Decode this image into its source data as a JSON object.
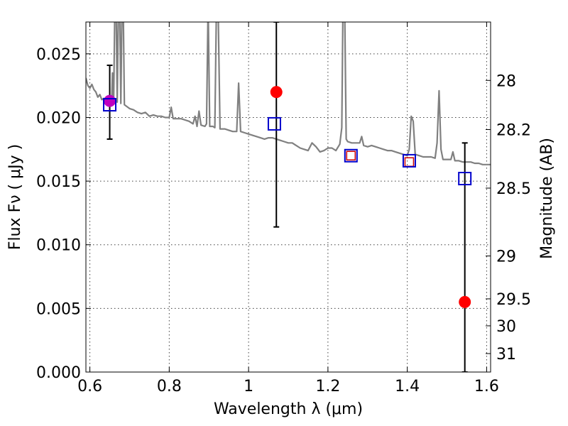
{
  "chart_data": {
    "type": "scatter",
    "title": "",
    "xlabel": "Wavelength  λ (μm)",
    "ylabel": "Flux  Fν  ( μJy )",
    "ylabel_right": "Magnitude (AB)",
    "xlim": [
      0.59,
      1.61
    ],
    "ylim": [
      0.0,
      0.0275
    ],
    "grid": true,
    "x_ticks": [
      {
        "value": 0.6,
        "label": "0.6"
      },
      {
        "value": 0.8,
        "label": "0.8"
      },
      {
        "value": 1.0,
        "label": "1"
      },
      {
        "value": 1.2,
        "label": "1.2"
      },
      {
        "value": 1.4,
        "label": "1.4"
      },
      {
        "value": 1.6,
        "label": "1.6"
      }
    ],
    "y_ticks": [
      {
        "value": 0.0,
        "label": "0.000"
      },
      {
        "value": 0.005,
        "label": "0.005"
      },
      {
        "value": 0.01,
        "label": "0.010"
      },
      {
        "value": 0.015,
        "label": "0.015"
      },
      {
        "value": 0.02,
        "label": "0.020"
      },
      {
        "value": 0.025,
        "label": "0.025"
      }
    ],
    "magnitude_ticks": [
      {
        "flux": 0.02291,
        "label": "28"
      },
      {
        "flux": 0.01905,
        "label": "28.2"
      },
      {
        "flux": 0.01445,
        "label": "28.5"
      },
      {
        "flux": 0.00912,
        "label": "29"
      },
      {
        "flux": 0.00575,
        "label": "29.5"
      },
      {
        "flux": 0.00363,
        "label": "30"
      },
      {
        "flux": 0.00145,
        "label": "31"
      }
    ],
    "series": [
      {
        "type": "line",
        "color": "#808080",
        "points": [
          [
            0.59,
            0.0231
          ],
          [
            0.595,
            0.0225
          ],
          [
            0.6,
            0.0223
          ],
          [
            0.605,
            0.0226
          ],
          [
            0.61,
            0.0222
          ],
          [
            0.615,
            0.022
          ],
          [
            0.62,
            0.0216
          ],
          [
            0.625,
            0.0218
          ],
          [
            0.63,
            0.0214
          ],
          [
            0.635,
            0.0215
          ],
          [
            0.64,
            0.0212
          ],
          [
            0.645,
            0.0213
          ],
          [
            0.65,
            0.0211
          ],
          [
            0.655,
            0.0213
          ],
          [
            0.657,
            0.0235
          ],
          [
            0.66,
            0.0213
          ],
          [
            0.663,
            0.029
          ],
          [
            0.666,
            0.029
          ],
          [
            0.669,
            0.0212
          ],
          [
            0.672,
            0.029
          ],
          [
            0.675,
            0.029
          ],
          [
            0.678,
            0.0211
          ],
          [
            0.681,
            0.029
          ],
          [
            0.684,
            0.029
          ],
          [
            0.687,
            0.021
          ],
          [
            0.7,
            0.0207
          ],
          [
            0.71,
            0.0206
          ],
          [
            0.72,
            0.0204
          ],
          [
            0.73,
            0.0203
          ],
          [
            0.74,
            0.0204
          ],
          [
            0.75,
            0.0201
          ],
          [
            0.76,
            0.0202
          ],
          [
            0.77,
            0.0201
          ],
          [
            0.78,
            0.0201
          ],
          [
            0.79,
            0.02
          ],
          [
            0.8,
            0.02
          ],
          [
            0.805,
            0.0208
          ],
          [
            0.81,
            0.0199
          ],
          [
            0.82,
            0.0199
          ],
          [
            0.83,
            0.0199
          ],
          [
            0.84,
            0.0198
          ],
          [
            0.85,
            0.0197
          ],
          [
            0.86,
            0.0195
          ],
          [
            0.865,
            0.0201
          ],
          [
            0.87,
            0.0193
          ],
          [
            0.875,
            0.0205
          ],
          [
            0.88,
            0.0194
          ],
          [
            0.89,
            0.0193
          ],
          [
            0.894,
            0.0195
          ],
          [
            0.898,
            0.029
          ],
          [
            0.902,
            0.0193
          ],
          [
            0.91,
            0.0193
          ],
          [
            0.915,
            0.0192
          ],
          [
            0.919,
            0.029
          ],
          [
            0.923,
            0.029
          ],
          [
            0.928,
            0.0191
          ],
          [
            0.94,
            0.0191
          ],
          [
            0.95,
            0.019
          ],
          [
            0.96,
            0.0189
          ],
          [
            0.97,
            0.0189
          ],
          [
            0.975,
            0.0227
          ],
          [
            0.98,
            0.0189
          ],
          [
            0.99,
            0.0188
          ],
          [
            1.0,
            0.0187
          ],
          [
            1.01,
            0.0186
          ],
          [
            1.02,
            0.0185
          ],
          [
            1.03,
            0.0184
          ],
          [
            1.04,
            0.0183
          ],
          [
            1.05,
            0.0184
          ],
          [
            1.06,
            0.0184
          ],
          [
            1.07,
            0.0183
          ],
          [
            1.08,
            0.0182
          ],
          [
            1.09,
            0.0181
          ],
          [
            1.1,
            0.018
          ],
          [
            1.11,
            0.018
          ],
          [
            1.12,
            0.0178
          ],
          [
            1.13,
            0.0176
          ],
          [
            1.14,
            0.0175
          ],
          [
            1.15,
            0.0174
          ],
          [
            1.16,
            0.018
          ],
          [
            1.17,
            0.0177
          ],
          [
            1.18,
            0.0173
          ],
          [
            1.19,
            0.0174
          ],
          [
            1.2,
            0.0176
          ],
          [
            1.21,
            0.0176
          ],
          [
            1.22,
            0.0174
          ],
          [
            1.23,
            0.0179
          ],
          [
            1.235,
            0.0192
          ],
          [
            1.238,
            0.029
          ],
          [
            1.242,
            0.029
          ],
          [
            1.246,
            0.0183
          ],
          [
            1.25,
            0.0181
          ],
          [
            1.26,
            0.018
          ],
          [
            1.27,
            0.018
          ],
          [
            1.28,
            0.018
          ],
          [
            1.285,
            0.0185
          ],
          [
            1.29,
            0.0178
          ],
          [
            1.3,
            0.0177
          ],
          [
            1.31,
            0.0178
          ],
          [
            1.32,
            0.0177
          ],
          [
            1.33,
            0.0176
          ],
          [
            1.34,
            0.0175
          ],
          [
            1.35,
            0.0174
          ],
          [
            1.36,
            0.0174
          ],
          [
            1.37,
            0.0173
          ],
          [
            1.38,
            0.0172
          ],
          [
            1.39,
            0.0171
          ],
          [
            1.4,
            0.017
          ],
          [
            1.405,
            0.0175
          ],
          [
            1.41,
            0.0201
          ],
          [
            1.415,
            0.0197
          ],
          [
            1.42,
            0.0171
          ],
          [
            1.43,
            0.017
          ],
          [
            1.44,
            0.0169
          ],
          [
            1.45,
            0.0169
          ],
          [
            1.46,
            0.0169
          ],
          [
            1.47,
            0.0168
          ],
          [
            1.475,
            0.018
          ],
          [
            1.48,
            0.0221
          ],
          [
            1.485,
            0.0175
          ],
          [
            1.49,
            0.0167
          ],
          [
            1.5,
            0.0167
          ],
          [
            1.51,
            0.0167
          ],
          [
            1.515,
            0.0173
          ],
          [
            1.52,
            0.0166
          ],
          [
            1.53,
            0.0166
          ],
          [
            1.54,
            0.0165
          ],
          [
            1.55,
            0.0165
          ],
          [
            1.56,
            0.0165
          ],
          [
            1.57,
            0.0164
          ],
          [
            1.58,
            0.0164
          ],
          [
            1.59,
            0.0163
          ],
          [
            1.6,
            0.0163
          ],
          [
            1.61,
            0.0163
          ]
        ]
      },
      {
        "type": "errorbar",
        "color": "#000000",
        "points": [
          {
            "x": 0.65,
            "low": 0.0183,
            "high": 0.0241
          },
          {
            "x": 1.07,
            "low": 0.0114,
            "high": 0.0275
          },
          {
            "x": 1.545,
            "low": 0.0,
            "high": 0.018
          }
        ]
      },
      {
        "type": "scatter",
        "marker": "circle",
        "color": "#ff0000",
        "points": [
          [
            1.07,
            0.022
          ],
          [
            1.545,
            0.0055
          ]
        ]
      },
      {
        "type": "scatter",
        "marker": "circle",
        "color": "#bf00bf",
        "points": [
          [
            0.65,
            0.0213
          ]
        ]
      },
      {
        "type": "scatter",
        "marker": "square-open",
        "color": "#cc0000",
        "size": "small",
        "points": [
          [
            1.258,
            0.017
          ],
          [
            1.405,
            0.0165
          ]
        ]
      },
      {
        "type": "scatter",
        "marker": "square-open",
        "color": "#0000cc",
        "size": "large",
        "points": [
          [
            0.65,
            0.021
          ],
          [
            1.065,
            0.0195
          ],
          [
            1.258,
            0.017
          ],
          [
            1.405,
            0.0166
          ],
          [
            1.545,
            0.0152
          ]
        ]
      }
    ]
  }
}
